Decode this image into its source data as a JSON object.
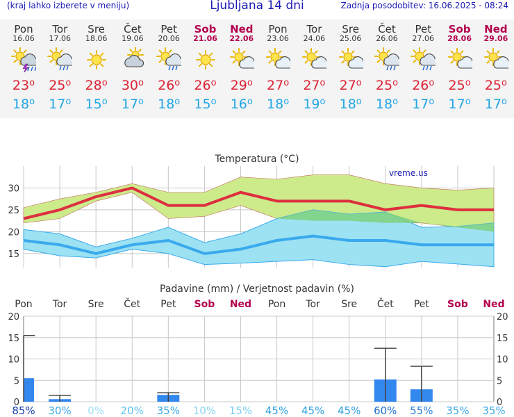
{
  "header": {
    "left_note": "(kraj lahko izberete v meniju)",
    "title": "Ljubljana 14 dni",
    "updated": "Zadnja posodobitev: 16.06.2025 - 08:24"
  },
  "days": [
    {
      "name": "Pon",
      "date": "16.06",
      "weekend": false,
      "icon": "thunderstorm-icon",
      "tmax": "23",
      "tmin": "18"
    },
    {
      "name": "Tor",
      "date": "17.06",
      "weekend": false,
      "icon": "sun-rain-cloud-icon",
      "tmax": "25",
      "tmin": "17"
    },
    {
      "name": "Sre",
      "date": "18.06",
      "weekend": false,
      "icon": "sun-icon",
      "tmax": "28",
      "tmin": "15"
    },
    {
      "name": "Čet",
      "date": "19.06",
      "weekend": false,
      "icon": "cloudy-sun-icon",
      "tmax": "30",
      "tmin": "17"
    },
    {
      "name": "Pet",
      "date": "20.06",
      "weekend": false,
      "icon": "sun-rain-cloud-icon",
      "tmax": "26",
      "tmin": "18"
    },
    {
      "name": "Sob",
      "date": "21.06",
      "weekend": true,
      "icon": "sun-icon",
      "tmax": "26",
      "tmin": "15"
    },
    {
      "name": "Ned",
      "date": "22.06",
      "weekend": true,
      "icon": "partly-cloudy-icon",
      "tmax": "29",
      "tmin": "16"
    },
    {
      "name": "Pon",
      "date": "23.06",
      "weekend": false,
      "icon": "partly-cloudy-icon",
      "tmax": "27",
      "tmin": "18"
    },
    {
      "name": "Tor",
      "date": "24.06",
      "weekend": false,
      "icon": "partly-cloudy-icon",
      "tmax": "27",
      "tmin": "19"
    },
    {
      "name": "Sre",
      "date": "25.06",
      "weekend": false,
      "icon": "partly-cloudy-icon",
      "tmax": "27",
      "tmin": "18"
    },
    {
      "name": "Čet",
      "date": "26.06",
      "weekend": false,
      "icon": "sun-rain-cloud-icon",
      "tmax": "25",
      "tmin": "18"
    },
    {
      "name": "Pet",
      "date": "27.06",
      "weekend": false,
      "icon": "sun-rain-cloud-icon",
      "tmax": "26",
      "tmin": "17"
    },
    {
      "name": "Sob",
      "date": "28.06",
      "weekend": true,
      "icon": "partly-cloudy-icon",
      "tmax": "25",
      "tmin": "17"
    },
    {
      "name": "Ned",
      "date": "29.06",
      "weekend": true,
      "icon": "partly-cloudy-icon",
      "tmax": "25",
      "tmin": "17"
    }
  ],
  "colors": {
    "max_line": "#dd2f3f",
    "min_line": "#3aa9ee",
    "max_band": "#cdeb8b",
    "min_band": "#9ce2f2",
    "overlap_band": "#7ed17e",
    "precip_bar": "#3388ee",
    "weekday": "#333333",
    "weekend": "#b4004e",
    "grid": "#c8c8c8"
  },
  "chart_data": [
    {
      "type": "line",
      "title": "Temperatura (°C)",
      "watermark": "vreme.us",
      "ylim": [
        11,
        35
      ],
      "yticks": [
        15,
        20,
        25,
        30
      ],
      "grid": true,
      "series": [
        {
          "values": [
            23,
            25,
            28,
            30,
            26,
            26,
            29,
            27,
            27,
            27,
            25,
            26,
            25,
            25
          ]
        },
        {
          "values": [
            18,
            17,
            15,
            17,
            18,
            15,
            16,
            18,
            19,
            18,
            18,
            17,
            17,
            17
          ]
        }
      ],
      "bands": [
        {
          "low": [
            22,
            23,
            27,
            29,
            23,
            23.5,
            26,
            23,
            22.5,
            22.5,
            22,
            22,
            21,
            20
          ],
          "high": [
            25.5,
            27.5,
            29,
            31,
            29,
            29,
            32.5,
            32,
            33,
            33,
            31,
            30,
            29.5,
            30
          ]
        },
        {
          "low": [
            16,
            14.5,
            14,
            16,
            15,
            12.5,
            12.8,
            13.2,
            13.6,
            12.5,
            12,
            13.2,
            12.6,
            12
          ]
        },
        {
          "high": [
            20.5,
            19.5,
            16.5,
            18.5,
            21,
            17.5,
            19.5,
            23,
            25,
            24,
            24.5,
            21,
            21.2,
            22
          ]
        }
      ]
    },
    {
      "type": "bar",
      "title": "Padavine (mm) / Verjetnost padavin (%)",
      "ylim": [
        0,
        20
      ],
      "yticks": [
        0,
        5,
        10,
        15,
        20
      ],
      "categories": [
        "Pon",
        "Tor",
        "Sre",
        "Čet",
        "Pet",
        "Sob",
        "Ned",
        "Pon",
        "Tor",
        "Sre",
        "Čet",
        "Pet",
        "Sob",
        "Ned"
      ],
      "values": [
        5.5,
        0.6,
        0,
        0,
        1.6,
        0,
        0,
        0,
        0,
        0,
        5.2,
        2.9,
        0,
        0
      ],
      "error_high": [
        15.5,
        1.5,
        0,
        0,
        2.1,
        0,
        0,
        0,
        0,
        0,
        12.5,
        8.3,
        0,
        0
      ],
      "probabilities": [
        "85%",
        "30%",
        "0%",
        "20%",
        "35%",
        "10%",
        "15%",
        "45%",
        "45%",
        "45%",
        "60%",
        "55%",
        "35%",
        "35%"
      ],
      "probability_colors": [
        "#1a3fa8",
        "#3aa9e6",
        "#9fdcf2",
        "#5ec3ec",
        "#3aa9e6",
        "#8dd6f0",
        "#7ccff0",
        "#2f9fe0",
        "#2f9fe0",
        "#2f9fe0",
        "#1f6fd0",
        "#2780d8",
        "#3aa9e6",
        "#3aa9e6"
      ]
    }
  ]
}
